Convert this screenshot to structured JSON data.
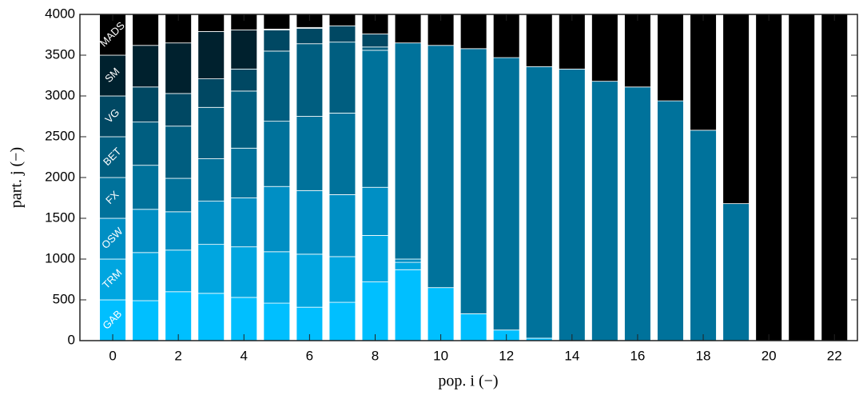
{
  "chart_data": {
    "type": "stacked_bar",
    "x_label": "pop. i (−)",
    "y_label": "part. j (−)",
    "x": [
      0,
      1,
      2,
      3,
      4,
      5,
      6,
      7,
      8,
      9,
      10,
      11,
      12,
      13,
      14,
      15,
      16,
      17,
      18,
      19,
      20,
      21,
      22
    ],
    "xlim": [
      -1,
      22.7
    ],
    "xticks": [
      0,
      2,
      4,
      6,
      8,
      10,
      12,
      14,
      16,
      18,
      20,
      22
    ],
    "ylim": [
      0,
      4000
    ],
    "yticks": [
      0,
      500,
      1000,
      1500,
      2000,
      2500,
      3000,
      3500,
      4000
    ],
    "series": [
      {
        "name": "GAB",
        "color": "#00bfff",
        "values": [
          500,
          490,
          600,
          580,
          530,
          460,
          410,
          470,
          720,
          870,
          650,
          330,
          130,
          30,
          0,
          0,
          0,
          0,
          0,
          0,
          0,
          0,
          0
        ]
      },
      {
        "name": "TRM",
        "color": "#00a6e0",
        "values": [
          500,
          590,
          510,
          600,
          620,
          630,
          650,
          560,
          570,
          90,
          0,
          0,
          0,
          0,
          0,
          0,
          0,
          0,
          0,
          0,
          0,
          0,
          0
        ]
      },
      {
        "name": "OSW",
        "color": "#008fc4",
        "values": [
          500,
          530,
          470,
          530,
          600,
          800,
          780,
          760,
          590,
          40,
          0,
          0,
          0,
          0,
          0,
          0,
          0,
          0,
          0,
          0,
          0,
          0,
          0
        ]
      },
      {
        "name": "FX",
        "color": "#00729b",
        "values": [
          500,
          540,
          410,
          520,
          610,
          800,
          910,
          1000,
          1680,
          2650,
          2970,
          3250,
          3340,
          3330,
          3330,
          3180,
          3110,
          2940,
          2580,
          1680,
          0,
          0,
          0
        ]
      },
      {
        "name": "BET",
        "color": "#005e80",
        "values": [
          500,
          530,
          640,
          630,
          700,
          860,
          890,
          870,
          40,
          0,
          0,
          0,
          0,
          0,
          0,
          0,
          0,
          0,
          0,
          0,
          0,
          0,
          0
        ]
      },
      {
        "name": "VG",
        "color": "#004863",
        "values": [
          500,
          430,
          400,
          350,
          270,
          260,
          190,
          200,
          160,
          0,
          0,
          0,
          0,
          0,
          0,
          0,
          0,
          0,
          0,
          0,
          0,
          0,
          0
        ]
      },
      {
        "name": "SM",
        "color": "#00212e",
        "values": [
          500,
          510,
          620,
          580,
          480,
          10,
          10,
          0,
          0,
          0,
          0,
          0,
          0,
          0,
          0,
          0,
          0,
          0,
          0,
          0,
          0,
          0,
          0
        ]
      },
      {
        "name": "MADS",
        "color": "#000000",
        "values": [
          500,
          380,
          350,
          210,
          190,
          180,
          160,
          140,
          240,
          350,
          380,
          420,
          530,
          640,
          670,
          820,
          890,
          1060,
          1420,
          2320,
          4000,
          4000,
          4000
        ]
      }
    ]
  }
}
